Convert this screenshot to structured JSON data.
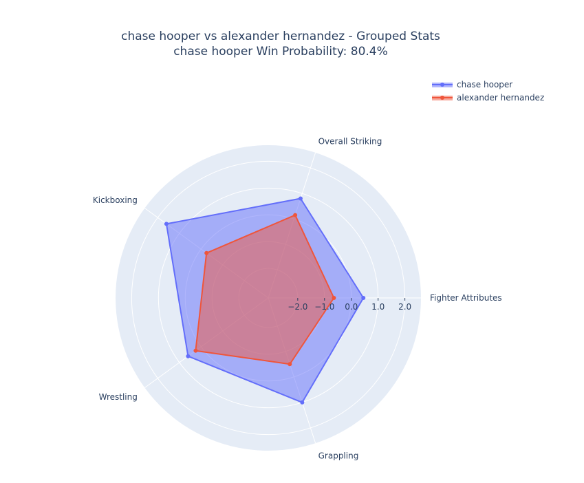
{
  "chart_data": {
    "type": "radar",
    "title": "chase hooper vs alexander hernandez - Grouped Stats",
    "subtitle": "chase hooper Win Probability: 80.4%",
    "categories": [
      "Fighter Attributes",
      "Overall Striking",
      "Grappling",
      "Wrestling",
      "Kickboxing"
    ],
    "radial_range": [
      -3.1,
      2.6
    ],
    "radial_ticks": [
      -2,
      -1,
      0,
      1,
      2
    ],
    "radial_tick_labels": [
      "−2.0",
      "−1.0",
      "0.0",
      "1.0",
      "2.0"
    ],
    "legend_placement": "top-right",
    "series": [
      {
        "name": "chase hooper",
        "color": "#636efa",
        "values": [
          0.45,
          0.8,
          1.6,
          0.6,
          1.0
        ]
      },
      {
        "name": "alexander hernandez",
        "color": "#ef553b",
        "values": [
          -0.65,
          0.15,
          -0.25,
          0.25,
          -0.5
        ]
      }
    ]
  }
}
